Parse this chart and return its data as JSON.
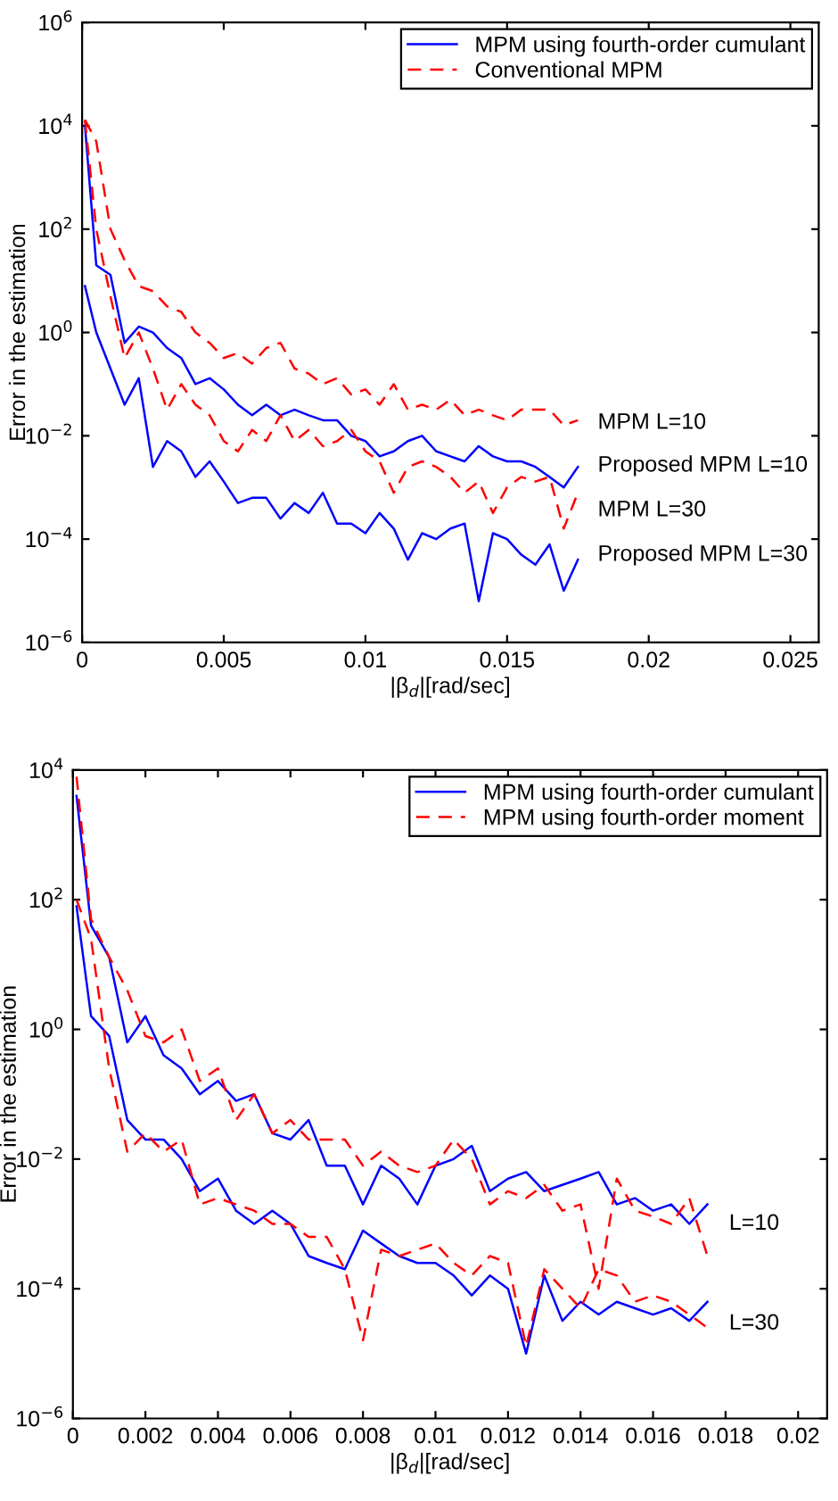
{
  "chart_data": [
    {
      "type": "line",
      "xlabel": "|β$_{d}$|[rad/sec]",
      "ylabel": "Error in the estimation",
      "log": "y",
      "legend": "top right",
      "grid": false,
      "xlim": [
        0,
        0.026
      ],
      "xticks": [
        0,
        0.005,
        0.01,
        0.015,
        0.02,
        0.025
      ],
      "ylim": [
        1e-06,
        1000000.0
      ],
      "yticks": [
        {
          "value": 1e-06,
          "label": "10$^{−6}$"
        },
        {
          "value": 0.0001,
          "label": "10$^{−4}$"
        },
        {
          "value": 0.01,
          "label": "10$^{−2}$"
        },
        {
          "value": 1,
          "label": "10$^{0}$"
        },
        {
          "value": 100,
          "label": "10$^{2}$"
        },
        {
          "value": 10000.0,
          "label": "10$^{4}$"
        },
        {
          "value": 1000000.0,
          "label": "10$^{6}$"
        }
      ],
      "x": [
        0.0001,
        0.0005,
        0.001,
        0.0015,
        0.002,
        0.0025,
        0.003,
        0.0035,
        0.004,
        0.0045,
        0.005,
        0.0055,
        0.006,
        0.0065,
        0.007,
        0.0075,
        0.008,
        0.0085,
        0.009,
        0.0095,
        0.01,
        0.0105,
        0.011,
        0.0115,
        0.012,
        0.0125,
        0.013,
        0.0135,
        0.014,
        0.0145,
        0.015,
        0.0155,
        0.016,
        0.0165,
        0.017,
        0.0175
      ],
      "series": [
        {
          "name": "MPM using fourth-order cumulant",
          "color": "#0000ff",
          "line_style": "solid",
          "values": [
            10000.0,
            20,
            13,
            0.63,
            1.3,
            1,
            0.5,
            0.32,
            0.1,
            0.13,
            0.079,
            0.04,
            0.025,
            0.04,
            0.025,
            0.032,
            0.025,
            0.02,
            0.02,
            0.01,
            0.0079,
            0.004,
            0.005,
            0.0079,
            0.01,
            0.005,
            0.004,
            0.0032,
            0.0063,
            0.004,
            0.0032,
            0.0032,
            0.0025,
            0.0016,
            0.001,
            0.0025
          ]
        },
        {
          "color": "#0000ff",
          "line_style": "solid",
          "values": [
            7.9,
            1,
            0.2,
            0.04,
            0.13,
            0.0025,
            0.0079,
            0.005,
            0.0016,
            0.0032,
            0.0013,
            0.0005,
            0.00063,
            0.00063,
            0.00025,
            0.0005,
            0.00032,
            0.00079,
            0.0002,
            0.0002,
            0.00013,
            0.00032,
            0.00016,
            4e-05,
            0.00013,
            0.0001,
            0.00016,
            0.0002,
            6.3e-06,
            0.00013,
            0.0001,
            5e-05,
            3.2e-05,
            7.9e-05,
            1e-05,
            4e-05
          ]
        },
        {
          "name": "Conventional MPM",
          "color": "#ff0000",
          "line_style": "dashed",
          "values": [
            13000.0,
            5000,
            100,
            25,
            7.9,
            6.3,
            3.2,
            2.5,
            1,
            0.63,
            0.32,
            0.4,
            0.25,
            0.5,
            0.63,
            0.2,
            0.16,
            0.1,
            0.13,
            0.063,
            0.079,
            0.04,
            0.1,
            0.032,
            0.04,
            0.032,
            0.05,
            0.025,
            0.032,
            0.025,
            0.02,
            0.032,
            0.032,
            0.032,
            0.016,
            0.02
          ]
        },
        {
          "color": "#ff0000",
          "line_style": "dashed",
          "values": [
            13000.0,
            100,
            5,
            0.32,
            1,
            0.2,
            0.032,
            0.1,
            0.04,
            0.025,
            0.0079,
            0.005,
            0.013,
            0.0079,
            0.025,
            0.0079,
            0.013,
            0.0063,
            0.0079,
            0.013,
            0.005,
            0.0032,
            0.00079,
            0.0025,
            0.0032,
            0.0025,
            0.0016,
            0.00079,
            0.0013,
            0.00032,
            0.001,
            0.0016,
            0.0013,
            0.0016,
            0.00016,
            0.00079
          ]
        }
      ],
      "annotations": [
        "MPM L=10",
        "Proposed MPM L=10",
        "MPM L=30",
        "Proposed MPM L=30"
      ]
    },
    {
      "type": "line",
      "xlabel": "|β$_{d}$|[rad/sec]",
      "ylabel": "Error in the estimation",
      "log": "y",
      "legend": "top right",
      "grid": false,
      "xlim": [
        0,
        0.0208
      ],
      "xticks": [
        0,
        0.002,
        0.004,
        0.006,
        0.008,
        0.01,
        0.012,
        0.014,
        0.016,
        0.018,
        0.02
      ],
      "ylim": [
        1e-06,
        10000.0
      ],
      "yticks": [
        {
          "value": 1e-06,
          "label": "10$^{−6}$"
        },
        {
          "value": 0.0001,
          "label": "10$^{−4}$"
        },
        {
          "value": 0.01,
          "label": "10$^{−2}$"
        },
        {
          "value": 1,
          "label": "10$^{0}$"
        },
        {
          "value": 100,
          "label": "10$^{2}$"
        },
        {
          "value": 10000.0,
          "label": "10$^{4}$"
        }
      ],
      "x": [
        0.0001,
        0.0005,
        0.001,
        0.0015,
        0.002,
        0.0025,
        0.003,
        0.0035,
        0.004,
        0.0045,
        0.005,
        0.0055,
        0.006,
        0.0065,
        0.007,
        0.0075,
        0.008,
        0.0085,
        0.009,
        0.0095,
        0.01,
        0.0105,
        0.011,
        0.0115,
        0.012,
        0.0125,
        0.013,
        0.0135,
        0.014,
        0.0145,
        0.015,
        0.0155,
        0.016,
        0.0165,
        0.017,
        0.0175
      ],
      "series": [
        {
          "name": "MPM using fourth-order cumulant",
          "color": "#0000ff",
          "line_style": "solid",
          "values": [
            4000,
            40,
            13,
            0.63,
            1.6,
            0.4,
            0.25,
            0.1,
            0.16,
            0.079,
            0.1,
            0.025,
            0.02,
            0.04,
            0.0079,
            0.0079,
            0.002,
            0.0079,
            0.005,
            0.002,
            0.0079,
            0.01,
            0.016,
            0.0032,
            0.005,
            0.0063,
            0.0032,
            0.004,
            0.005,
            0.0063,
            0.002,
            0.0025,
            0.0016,
            0.002,
            0.001,
            0.002
          ]
        },
        {
          "color": "#0000ff",
          "line_style": "solid",
          "values": [
            79,
            1.6,
            0.79,
            0.04,
            0.02,
            0.02,
            0.01,
            0.0032,
            0.005,
            0.0016,
            0.001,
            0.0016,
            0.001,
            0.00032,
            0.00025,
            0.0002,
            0.00079,
            0.0005,
            0.00032,
            0.00025,
            0.00025,
            0.00016,
            7.9e-05,
            0.00016,
            0.0001,
            1e-05,
            0.00016,
            3.2e-05,
            6.3e-05,
            4e-05,
            6.3e-05,
            5e-05,
            4e-05,
            5e-05,
            3.2e-05,
            6.3e-05
          ]
        },
        {
          "name": "MPM using fourth-order moment",
          "color": "#ff0000",
          "line_style": "dashed",
          "values": [
            7900,
            50,
            13,
            4,
            0.79,
            0.63,
            1,
            0.16,
            0.25,
            0.04,
            0.1,
            0.025,
            0.04,
            0.02,
            0.02,
            0.02,
            0.0079,
            0.013,
            0.0079,
            0.0063,
            0.0079,
            0.02,
            0.01,
            0.002,
            0.0032,
            0.0025,
            0.004,
            0.0016,
            0.002,
            0.0001,
            0.005,
            0.0016,
            0.0013,
            0.001,
            0.0025,
            0.00032
          ]
        },
        {
          "color": "#ff0000",
          "line_style": "dashed",
          "values": [
            100,
            25,
            0.25,
            0.013,
            0.025,
            0.013,
            0.02,
            0.002,
            0.0025,
            0.002,
            0.0016,
            0.001,
            0.001,
            0.00063,
            0.00063,
            0.0002,
            1.6e-05,
            0.0004,
            0.00032,
            0.0004,
            0.0005,
            0.00025,
            0.00016,
            0.00032,
            0.00025,
            1.3e-05,
            0.0002,
            0.0001,
            5e-05,
            0.0002,
            0.00016,
            6.3e-05,
            7.9e-05,
            6.3e-05,
            4e-05,
            2.5e-05
          ]
        }
      ],
      "annotations": [
        "L=10",
        "L=30"
      ]
    }
  ]
}
